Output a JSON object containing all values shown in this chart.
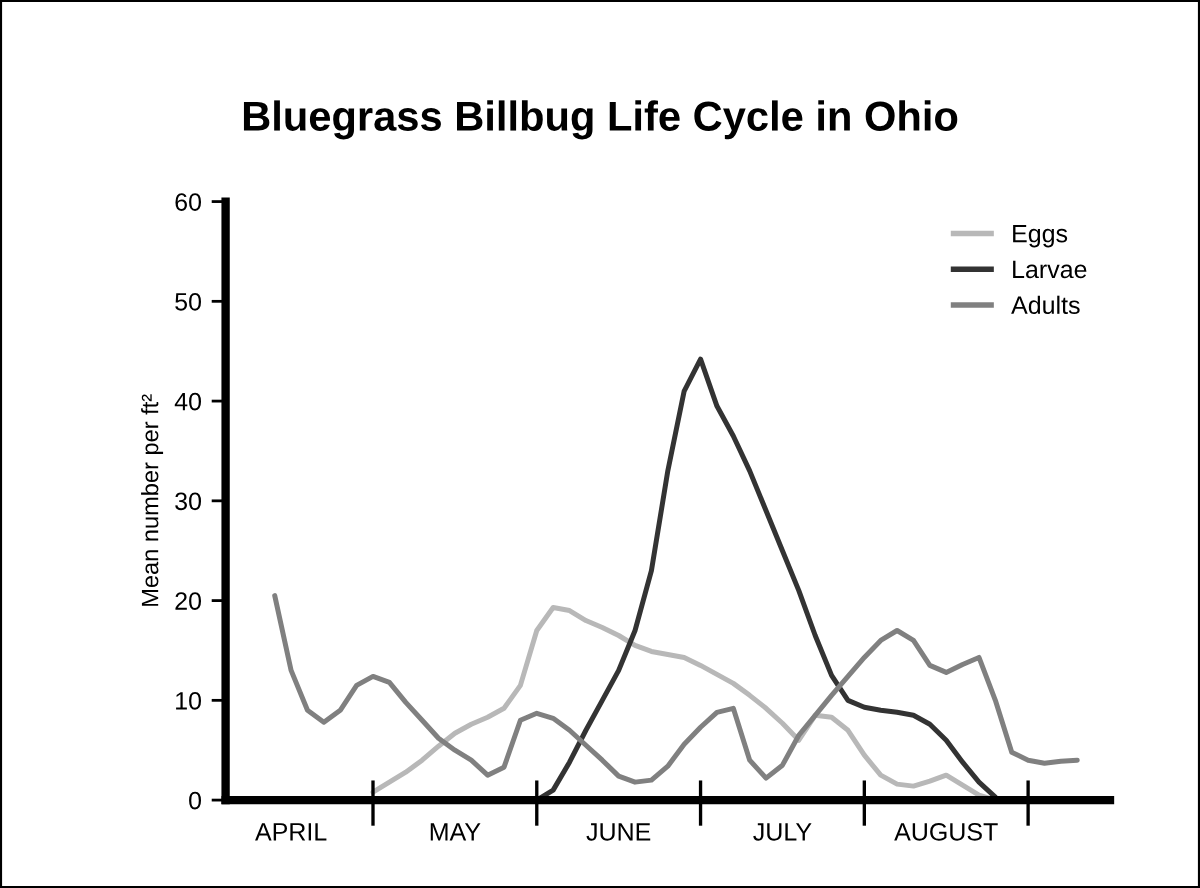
{
  "chart_data": {
    "type": "line",
    "title": "Bluegrass Billbug Life Cycle in Ohio",
    "ylabel": "Mean number per ft²",
    "categories": [
      null,
      "APRIL",
      null,
      null,
      null,
      null,
      null,
      null,
      null,
      null,
      null,
      "MAY",
      null,
      null,
      null,
      null,
      null,
      null,
      null,
      null,
      null,
      "JUNE",
      null,
      null,
      null,
      null,
      null,
      null,
      null,
      null,
      null,
      "JULY",
      null,
      null,
      null,
      null,
      null,
      null,
      null,
      null,
      null,
      "AUGUST",
      null,
      null,
      null,
      null,
      null,
      null,
      null,
      null
    ],
    "ylim": [
      0,
      60
    ],
    "yticks": [
      0,
      10,
      20,
      30,
      40,
      50,
      60
    ],
    "grid": false,
    "legend": "top right",
    "marker": "none",
    "line_style": "solid",
    "series": [
      {
        "name": "Eggs",
        "color": "#b8b8b8",
        "values": [
          null,
          null,
          null,
          null,
          null,
          null,
          0.8,
          1.8,
          2.8,
          4,
          5.4,
          6.7,
          7.6,
          8.3,
          9.2,
          11.5,
          17,
          19.3,
          19,
          18,
          17.3,
          16.5,
          15.5,
          14.9,
          14.6,
          14.3,
          13.5,
          12.6,
          11.7,
          10.5,
          9.2,
          7.7,
          6,
          8.5,
          8.3,
          7,
          4.5,
          2.5,
          1.6,
          1.4,
          1.9,
          2.5,
          1.5,
          0.5,
          0,
          null,
          null,
          null,
          null,
          null
        ]
      },
      {
        "name": "Larvae",
        "color": "#333333",
        "values": [
          null,
          null,
          null,
          null,
          null,
          null,
          null,
          null,
          null,
          null,
          null,
          null,
          null,
          null,
          null,
          null,
          0,
          1,
          3.8,
          7,
          10,
          13,
          17,
          23,
          33,
          41,
          44.2,
          39.5,
          36.5,
          33,
          29,
          25,
          21,
          16.5,
          12.5,
          10,
          9.3,
          9,
          8.8,
          8.5,
          7.6,
          6,
          3.8,
          1.8,
          0.3,
          null,
          null,
          null,
          null,
          null
        ]
      },
      {
        "name": "Adults",
        "color": "#808080",
        "values": [
          20.5,
          13,
          9,
          7.8,
          9,
          11.5,
          12.4,
          11.8,
          9.8,
          8,
          6.2,
          5,
          4,
          2.5,
          3.3,
          8,
          8.7,
          8.2,
          7,
          5.5,
          4,
          2.4,
          1.8,
          2,
          3.4,
          5.6,
          7.3,
          8.8,
          9.2,
          4,
          2.2,
          3.5,
          6.5,
          8.5,
          10.5,
          12.4,
          14.3,
          16,
          17,
          16,
          13.5,
          12.8,
          13.6,
          14.3,
          10,
          4.8,
          4,
          3.7,
          3.9,
          4
        ]
      }
    ]
  }
}
